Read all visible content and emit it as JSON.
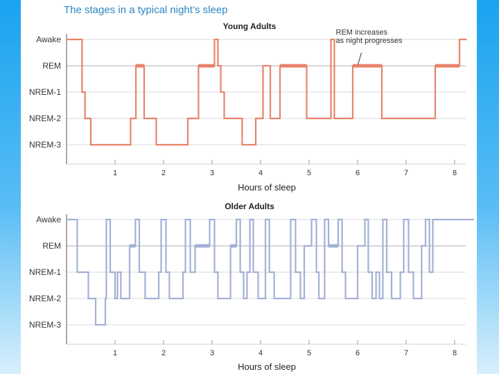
{
  "colors": {
    "young": "#e8836a",
    "older": "#a3b0d6",
    "grid": "#d8d8d8",
    "rem_line": "#c8c8c8",
    "title": "#2e86c1"
  },
  "figure_title": "The stages in a typical night’s sleep",
  "chart_data": [
    {
      "type": "line",
      "step": true,
      "title": "Young Adults",
      "xlabel": "Hours of sleep",
      "ylabel": "",
      "xlim": [
        0,
        8
      ],
      "xticks": [
        "1",
        "2",
        "3",
        "4",
        "5",
        "6",
        "7",
        "8"
      ],
      "y_categories": [
        "Awake",
        "REM",
        "NREM-1",
        "NREM-2",
        "NREM-3"
      ],
      "annotation": {
        "text_lines": [
          "REM increases",
          "as night progresses"
        ],
        "x": 6.05,
        "y": 1
      },
      "series": [
        {
          "points": [
            [
              0,
              0
            ],
            [
              0.32,
              0
            ],
            [
              0.32,
              1
            ],
            [
              0.32,
              2
            ],
            [
              0.38,
              2
            ],
            [
              0.38,
              3
            ],
            [
              0.5,
              3
            ],
            [
              0.5,
              4
            ],
            [
              1.32,
              4
            ],
            [
              1.32,
              3
            ],
            [
              1.43,
              3
            ],
            [
              1.43,
              1
            ],
            [
              1.6,
              1
            ],
            [
              1.6,
              3
            ],
            [
              1.85,
              3
            ],
            [
              1.85,
              4
            ],
            [
              2.5,
              4
            ],
            [
              2.5,
              3
            ],
            [
              2.72,
              3
            ],
            [
              2.72,
              1
            ],
            [
              3.05,
              1
            ],
            [
              3.05,
              0
            ],
            [
              3.12,
              0
            ],
            [
              3.12,
              1
            ],
            [
              3.18,
              1
            ],
            [
              3.18,
              2
            ],
            [
              3.25,
              2
            ],
            [
              3.25,
              3
            ],
            [
              3.62,
              3
            ],
            [
              3.62,
              4
            ],
            [
              3.9,
              4
            ],
            [
              3.9,
              3
            ],
            [
              4.05,
              3
            ],
            [
              4.05,
              1
            ],
            [
              4.2,
              1
            ],
            [
              4.2,
              3
            ],
            [
              4.4,
              3
            ],
            [
              4.4,
              1
            ],
            [
              4.95,
              1
            ],
            [
              4.95,
              3
            ],
            [
              5.45,
              3
            ],
            [
              5.45,
              0
            ],
            [
              5.52,
              0
            ],
            [
              5.52,
              3
            ],
            [
              5.9,
              3
            ],
            [
              5.9,
              1
            ],
            [
              6.5,
              1
            ],
            [
              6.5,
              3
            ],
            [
              7.6,
              3
            ],
            [
              7.6,
              1
            ],
            [
              8.1,
              1
            ],
            [
              8.1,
              0
            ],
            [
              8.25,
              0
            ]
          ],
          "thick_segments": [
            [
              1.43,
              1.6,
              1
            ],
            [
              2.72,
              3.05,
              1
            ],
            [
              4.4,
              4.95,
              1
            ],
            [
              5.9,
              6.5,
              1
            ],
            [
              7.6,
              8.1,
              1
            ]
          ]
        }
      ]
    },
    {
      "type": "line",
      "step": true,
      "title": "Older Adults",
      "xlabel": "Hours of sleep",
      "ylabel": "",
      "xlim": [
        0,
        8
      ],
      "xticks": [
        "1",
        "2",
        "3",
        "4",
        "5",
        "6",
        "7",
        "8"
      ],
      "y_categories": [
        "Awake",
        "REM",
        "NREM-1",
        "NREM-2",
        "NREM-3"
      ],
      "series": [
        {
          "points": [
            [
              0,
              0
            ],
            [
              0.22,
              0
            ],
            [
              0.22,
              2
            ],
            [
              0.45,
              2
            ],
            [
              0.45,
              3
            ],
            [
              0.6,
              3
            ],
            [
              0.6,
              4
            ],
            [
              0.8,
              4
            ],
            [
              0.8,
              3
            ],
            [
              0.82,
              3
            ],
            [
              0.82,
              0
            ],
            [
              0.9,
              0
            ],
            [
              0.9,
              2
            ],
            [
              1.0,
              2
            ],
            [
              1.0,
              3
            ],
            [
              1.05,
              3
            ],
            [
              1.05,
              2
            ],
            [
              1.12,
              2
            ],
            [
              1.12,
              3
            ],
            [
              1.3,
              3
            ],
            [
              1.3,
              1
            ],
            [
              1.42,
              1
            ],
            [
              1.42,
              0
            ],
            [
              1.5,
              0
            ],
            [
              1.5,
              2
            ],
            [
              1.62,
              2
            ],
            [
              1.62,
              3
            ],
            [
              1.9,
              3
            ],
            [
              1.9,
              2
            ],
            [
              1.95,
              2
            ],
            [
              1.95,
              0
            ],
            [
              2.05,
              0
            ],
            [
              2.05,
              2
            ],
            [
              2.12,
              2
            ],
            [
              2.12,
              3
            ],
            [
              2.4,
              3
            ],
            [
              2.4,
              2
            ],
            [
              2.45,
              2
            ],
            [
              2.45,
              0
            ],
            [
              2.55,
              0
            ],
            [
              2.55,
              2
            ],
            [
              2.65,
              2
            ],
            [
              2.65,
              1
            ],
            [
              2.95,
              1
            ],
            [
              2.95,
              0
            ],
            [
              3.05,
              0
            ],
            [
              3.05,
              2
            ],
            [
              3.12,
              2
            ],
            [
              3.12,
              3
            ],
            [
              3.38,
              3
            ],
            [
              3.38,
              1
            ],
            [
              3.5,
              1
            ],
            [
              3.5,
              0
            ],
            [
              3.58,
              0
            ],
            [
              3.58,
              2
            ],
            [
              3.65,
              2
            ],
            [
              3.65,
              3
            ],
            [
              3.72,
              3
            ],
            [
              3.72,
              2
            ],
            [
              3.78,
              2
            ],
            [
              3.78,
              0
            ],
            [
              3.85,
              0
            ],
            [
              3.85,
              2
            ],
            [
              3.95,
              2
            ],
            [
              3.95,
              3
            ],
            [
              4.1,
              3
            ],
            [
              4.1,
              0
            ],
            [
              4.18,
              0
            ],
            [
              4.18,
              2
            ],
            [
              4.28,
              2
            ],
            [
              4.28,
              3
            ],
            [
              4.62,
              3
            ],
            [
              4.62,
              0
            ],
            [
              4.72,
              0
            ],
            [
              4.72,
              2
            ],
            [
              4.82,
              2
            ],
            [
              4.82,
              3
            ],
            [
              4.9,
              3
            ],
            [
              4.9,
              1
            ],
            [
              5.05,
              1
            ],
            [
              5.05,
              0
            ],
            [
              5.15,
              0
            ],
            [
              5.15,
              2
            ],
            [
              5.2,
              2
            ],
            [
              5.2,
              3
            ],
            [
              5.32,
              3
            ],
            [
              5.32,
              0
            ],
            [
              5.4,
              0
            ],
            [
              5.4,
              1
            ],
            [
              5.6,
              1
            ],
            [
              5.6,
              0
            ],
            [
              5.68,
              0
            ],
            [
              5.68,
              2
            ],
            [
              5.75,
              2
            ],
            [
              5.75,
              3
            ],
            [
              6.0,
              3
            ],
            [
              6.0,
              1
            ],
            [
              6.15,
              1
            ],
            [
              6.15,
              0
            ],
            [
              6.22,
              0
            ],
            [
              6.22,
              2
            ],
            [
              6.3,
              2
            ],
            [
              6.3,
              3
            ],
            [
              6.38,
              3
            ],
            [
              6.38,
              2
            ],
            [
              6.45,
              2
            ],
            [
              6.45,
              3
            ],
            [
              6.52,
              3
            ],
            [
              6.52,
              0
            ],
            [
              6.6,
              0
            ],
            [
              6.6,
              2
            ],
            [
              6.7,
              2
            ],
            [
              6.7,
              3
            ],
            [
              6.88,
              3
            ],
            [
              6.88,
              2
            ],
            [
              6.95,
              2
            ],
            [
              6.95,
              0
            ],
            [
              7.05,
              0
            ],
            [
              7.05,
              2
            ],
            [
              7.15,
              2
            ],
            [
              7.15,
              3
            ],
            [
              7.32,
              3
            ],
            [
              7.32,
              1
            ],
            [
              7.4,
              1
            ],
            [
              7.4,
              0
            ],
            [
              7.48,
              0
            ],
            [
              7.48,
              2
            ],
            [
              7.55,
              2
            ],
            [
              7.55,
              0
            ],
            [
              7.62,
              0
            ],
            [
              7.62,
              0
            ],
            [
              8.4,
              0
            ]
          ],
          "thick_segments": [
            [
              1.3,
              1.42,
              1
            ],
            [
              2.65,
              2.95,
              1
            ],
            [
              3.38,
              3.5,
              1
            ],
            [
              5.4,
              5.6,
              1
            ]
          ]
        }
      ]
    }
  ]
}
